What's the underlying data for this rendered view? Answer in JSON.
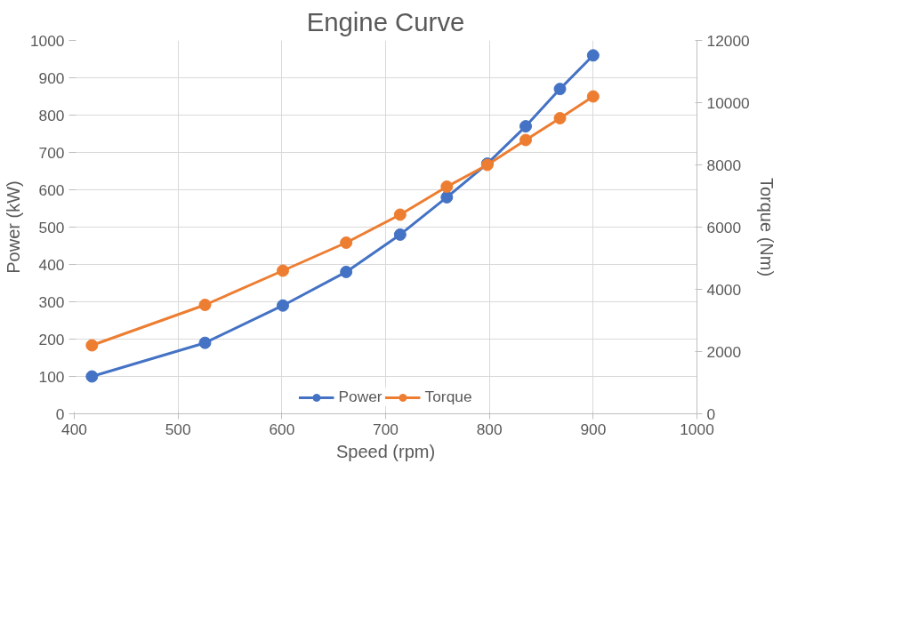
{
  "chart_data": {
    "type": "line",
    "title": "Engine Curve",
    "xlabel": "Speed (rpm)",
    "ylabel": "Power (kW)",
    "y2label": "Torque (Nm)",
    "x": [
      417,
      526,
      601,
      662,
      714,
      759,
      798,
      835,
      868,
      900
    ],
    "series": [
      {
        "name": "Power",
        "color": "#4472c4",
        "values": [
          100,
          190,
          290,
          380,
          480,
          580,
          670,
          770,
          870,
          960
        ]
      },
      {
        "name": "Torque",
        "color": "#ed7d31",
        "axis": "y2",
        "values": [
          2200,
          3500,
          4600,
          5500,
          6400,
          7300,
          8000,
          8800,
          9500,
          10200
        ]
      }
    ],
    "xlim": [
      400,
      1000
    ],
    "xticks": [
      400,
      500,
      600,
      700,
      800,
      900,
      1000
    ],
    "ylim": [
      0,
      1000
    ],
    "yticks": [
      0,
      100,
      200,
      300,
      400,
      500,
      600,
      700,
      800,
      900,
      1000
    ],
    "y2lim": [
      0,
      12000
    ],
    "y2ticks": [
      0,
      2000,
      4000,
      6000,
      8000,
      10000,
      12000
    ],
    "grid": true,
    "legend": "bottom",
    "marker": "circle",
    "line_style": "solid"
  }
}
